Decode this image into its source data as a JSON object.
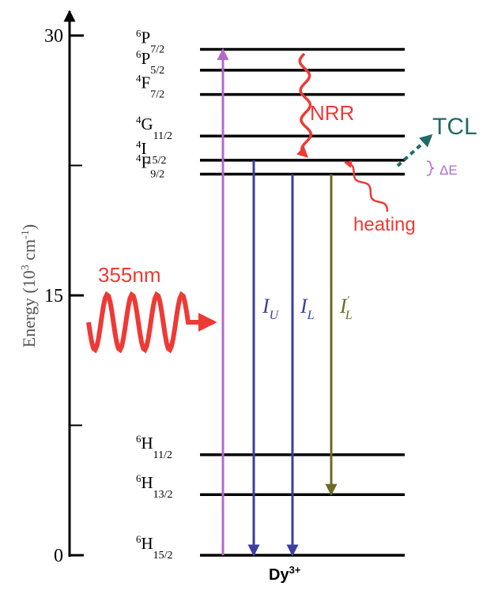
{
  "axis": {
    "title": {
      "main": "Energy (10",
      "exp": "3",
      "unit": " cm",
      "unit_exp": "-1",
      "close": ")"
    },
    "ylim": [
      0,
      30
    ],
    "ticks": [
      0,
      15,
      30
    ],
    "minor_ticks": [
      7.5,
      22.5
    ]
  },
  "levels": [
    {
      "multiplicity": "6",
      "term": "P",
      "j": "7/2",
      "energy": 29.2
    },
    {
      "multiplicity": "6",
      "term": "P",
      "j": "5/2",
      "energy": 28.0
    },
    {
      "multiplicity": "4",
      "term": "F",
      "j": "7/2",
      "energy": 26.6
    },
    {
      "multiplicity": "4",
      "term": "G",
      "j": "11/2",
      "energy": 24.2
    },
    {
      "multiplicity": "4",
      "term": "I",
      "j": "15/2",
      "energy": 22.8
    },
    {
      "multiplicity": "4",
      "term": "F",
      "j": "9/2",
      "energy": 22.0
    },
    {
      "multiplicity": "6",
      "term": "H",
      "j": "11/2",
      "energy": 5.8
    },
    {
      "multiplicity": "6",
      "term": "H",
      "j": "13/2",
      "energy": 3.5
    },
    {
      "multiplicity": "6",
      "term": "H",
      "j": "15/2",
      "energy": 0
    }
  ],
  "transition_labels": {
    "upper": {
      "symbol": "I",
      "sub": "U"
    },
    "lower": {
      "symbol": "I",
      "sub": "L"
    },
    "lower_prime": {
      "symbol": "I",
      "prime": "′",
      "sub": "L"
    }
  },
  "annotations": {
    "nrr": "NRR",
    "tcl": "TCL",
    "delta_e": "ΔE",
    "heating": "heating",
    "excitation": "355nm"
  },
  "ion": {
    "symbol": "Dy",
    "charge": "3+"
  }
}
